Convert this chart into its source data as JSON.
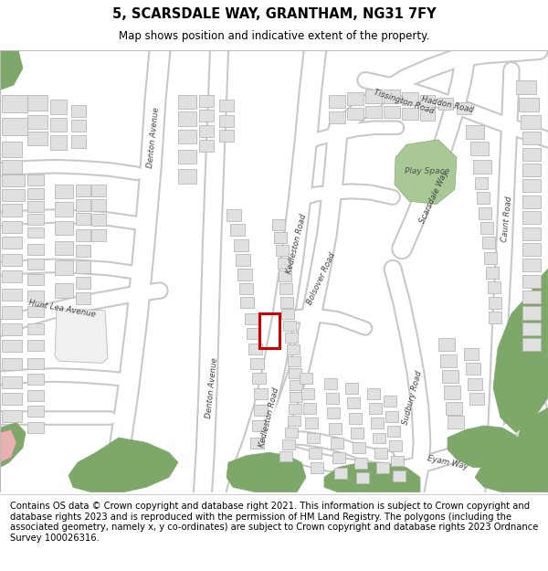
{
  "title": "5, SCARSDALE WAY, GRANTHAM, NG31 7FY",
  "subtitle": "Map shows position and indicative extent of the property.",
  "footer": "Contains OS data © Crown copyright and database right 2021. This information is subject to Crown copyright and database rights 2023 and is reproduced with the permission of HM Land Registry. The polygons (including the associated geometry, namely x, y co-ordinates) are subject to Crown copyright and database rights 2023 Ordnance Survey 100026316.",
  "map_bg": "#f2f2f2",
  "road_color": "#ffffff",
  "road_outline": "#c8c8c8",
  "building_fill": "#e0e0e0",
  "building_outline": "#b8b8b8",
  "green_fill": "#7ea86a",
  "green_light": "#a8c895",
  "highlight_color": "#cc0000",
  "title_fontsize": 10.5,
  "subtitle_fontsize": 8.5,
  "footer_fontsize": 7.2,
  "label_fontsize": 6.2
}
